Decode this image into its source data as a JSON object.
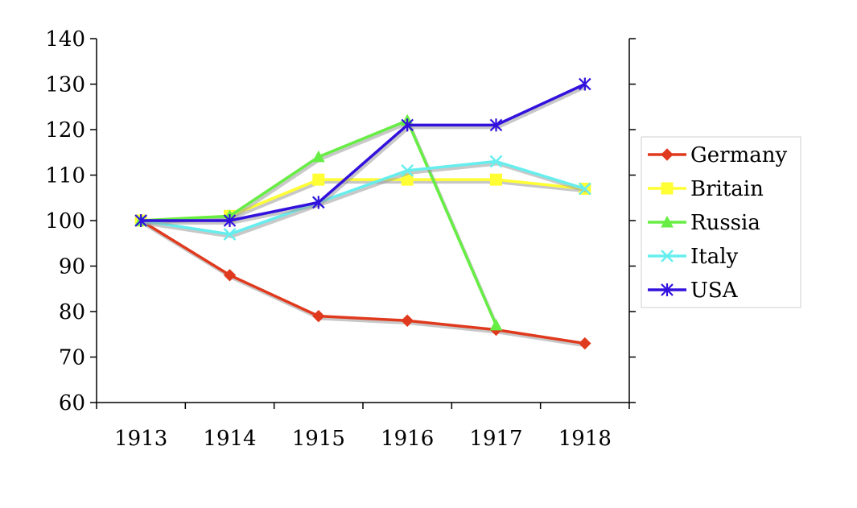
{
  "chart_data": {
    "type": "line",
    "title": "",
    "xlabel": "",
    "ylabel": "",
    "categories": [
      "1913",
      "1914",
      "1915",
      "1916",
      "1917",
      "1918"
    ],
    "ylim": [
      60,
      140
    ],
    "yticks": [
      "60",
      "70",
      "80",
      "90",
      "100",
      "110",
      "120",
      "130",
      "140"
    ],
    "grid": false,
    "legend_position": "right",
    "series": [
      {
        "name": "Germany",
        "color": "#e03a1e",
        "marker": "diamond",
        "values": [
          100,
          88,
          79,
          78,
          76,
          73
        ]
      },
      {
        "name": "Britain",
        "color": "#ffff33",
        "marker": "square",
        "values": [
          100,
          101,
          109,
          109,
          109,
          107
        ]
      },
      {
        "name": "Russia",
        "color": "#66ee44",
        "marker": "triangle",
        "values": [
          100,
          101,
          114,
          122,
          77,
          null
        ]
      },
      {
        "name": "Italy",
        "color": "#66eeee",
        "marker": "x",
        "values": [
          100,
          97,
          104,
          111,
          113,
          107
        ]
      },
      {
        "name": "USA",
        "color": "#3311dd",
        "marker": "asterisk",
        "values": [
          100,
          100,
          104,
          121,
          121,
          130
        ]
      }
    ]
  }
}
